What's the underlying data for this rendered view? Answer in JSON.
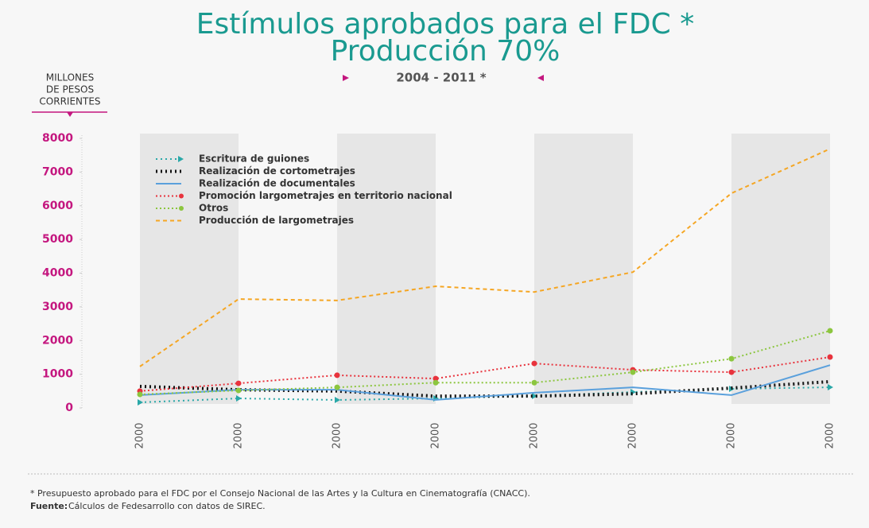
{
  "chart_data": {
    "type": "line",
    "title": "Estímulos aprobados para el FDC *",
    "subtitle": "Producción 70%",
    "period": "2004 - 2011 *",
    "y_label": [
      "MILLONES",
      "DE PESOS",
      "CORRIENTES"
    ],
    "categories": [
      "2000",
      "2000",
      "2000",
      "2000",
      "2000",
      "2000",
      "2000",
      "2000"
    ],
    "ylim": [
      0,
      8000
    ],
    "yticks": [
      0,
      1000,
      2000,
      3000,
      4000,
      5000,
      6000,
      7000,
      8000
    ],
    "series": [
      {
        "name": "Escritura de guiones",
        "color": "#2aa8a8",
        "dash": "2,4",
        "marker": "arrow",
        "values": [
          165,
          283,
          236,
          283,
          354,
          472,
          566,
          613
        ]
      },
      {
        "name": "Realización de cortometrajes",
        "color": "#111111",
        "dash": "2,4",
        "marker": "none",
        "values": [
          640,
          540,
          500,
          350,
          350,
          420,
          590,
          780
        ]
      },
      {
        "name": "Realización de documentales",
        "color": "#5aa0dc",
        "dash": "none",
        "marker": "none",
        "values": [
          380,
          540,
          540,
          240,
          450,
          610,
          380,
          1270
        ]
      },
      {
        "name": "Promoción largometrajes en territorio nacional",
        "color": "#e8333d",
        "dash": "2,3",
        "marker": "dot",
        "values": [
          500,
          730,
          970,
          870,
          1320,
          1130,
          1060,
          1510
        ]
      },
      {
        "name": "Otros",
        "color": "#8cc63f",
        "dash": "2,3",
        "marker": "dot",
        "values": [
          400,
          520,
          610,
          750,
          750,
          1060,
          1460,
          2290
        ]
      },
      {
        "name": "Producción de largometrajes",
        "color": "#f5a623",
        "dash": "5,4",
        "marker": "none",
        "values": [
          1230,
          3230,
          3190,
          3610,
          3440,
          4030,
          6370,
          7690
        ]
      }
    ],
    "footnote": "* Presupuesto aprobado para el FDC por el Consejo Nacional de las Artes y la Cultura en Cinematografía (CNACC).",
    "source_label": "Fuente:",
    "source": "Cálculos de Fedesarrollo con datos de SIREC."
  }
}
